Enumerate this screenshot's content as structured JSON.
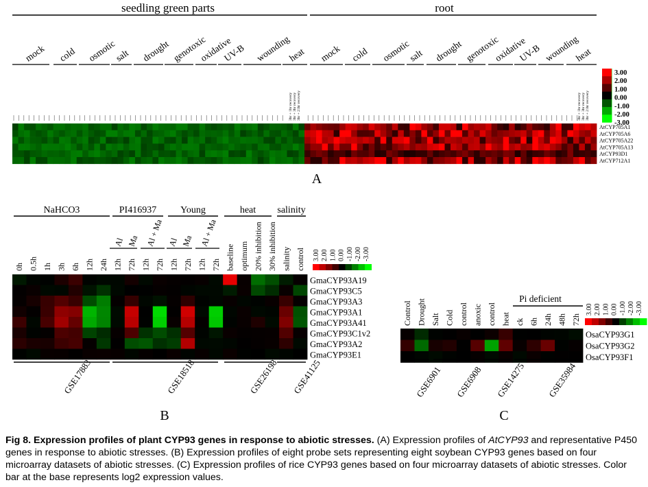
{
  "panelA": {
    "label": "A",
    "group_headers": [
      "seedling green parts",
      "root"
    ],
    "conditions": [
      "mock",
      "cold",
      "osmotic",
      "salt",
      "drought",
      "genotoxic",
      "oxidative",
      "UV-B",
      "wounding",
      "heat"
    ],
    "heat_sublabels": [
      "3hr + 1hr recovery",
      "3hr + 3hr recovery",
      "3hr + 21hr recovery"
    ],
    "genes": [
      "AtCYP705A1",
      "AtCYP705A6",
      "AtCYP705A22",
      "AtCYP705A13",
      "AtCYP93D1",
      "AtCYP712A1"
    ],
    "colorbar_labels": [
      "3.00",
      "2.00",
      "1.00",
      "0.00",
      "-1.00",
      "-2.00",
      "-3.00"
    ]
  },
  "panelB": {
    "label": "B",
    "group_headers": [
      "NaHCO3",
      "PI416937",
      "Young",
      "heat",
      "salinity"
    ],
    "ma_labels": [
      "Al",
      "Ma",
      "Al + Ma",
      "Al",
      "Ma",
      "Al + Ma"
    ],
    "columns": [
      "0h",
      "0.5h",
      "1h",
      "3h",
      "6h",
      "12h",
      "24h",
      "12h",
      "72h",
      "12h",
      "72h",
      "12h",
      "72h",
      "12h",
      "72h",
      "baseline",
      "optimum",
      "20% inhibition",
      "30% inhibition",
      "salinity",
      "control"
    ],
    "genes": [
      "GmaCYP93A19",
      "GmaCYP93C5",
      "GmaCYP93A3",
      "GmaCYP93A1",
      "GmaCYP93A41",
      "GmaCYP93C1v2",
      "GmaCYP93A2",
      "GmaCYP93E1"
    ],
    "datasets": [
      "GSE17883",
      "GSE18518",
      "GSE26198",
      "GSE41125"
    ],
    "colorbar_labels": [
      "3.00",
      "2.00",
      "1.00",
      "0.00",
      "-1.00",
      "-2.00",
      "-3.00"
    ]
  },
  "panelC": {
    "label": "C",
    "group_header": "Pi deficient",
    "columns": [
      "Control",
      "Drought",
      "Salt",
      "Cold",
      "control",
      "anoxic",
      "control",
      "heat",
      "ck",
      "6h",
      "24h",
      "48h",
      "72h"
    ],
    "genes": [
      "OsaCYP93G1",
      "OsaCYP93G2",
      "OsaCYP93F1"
    ],
    "datasets": [
      "GSE6901",
      "GSE6908",
      "GSE14275",
      "GSE35984"
    ],
    "colorbar_labels": [
      "3.00",
      "2.00",
      "1.00",
      "0.00",
      "-1.00",
      "-2.00",
      "-3.00"
    ]
  },
  "caption": {
    "figure_label": "Fig 8.",
    "title": "Expression profiles of plant CYP93 genes in response to abiotic stresses.",
    "part_a_1": " (A) Expression profiles of ",
    "part_a_gene": "AtCYP93",
    "part_a_2": " and representative P450 genes in response to abiotic stresses. (B) Expression profiles of eight probe sets representing eight soybean CYP93 genes based on four microarray datasets of abiotic stresses. (C) Expression profiles of rice CYP93 genes based on four microarray datasets of abiotic stresses. Color bar at the base represents log2 expression values."
  }
}
